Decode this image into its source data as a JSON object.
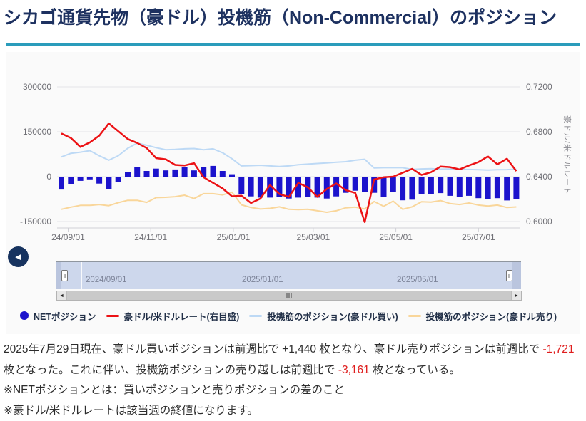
{
  "title": "シカゴ通貨先物（豪ドル）投機筋（Non-Commercial）のポジション",
  "colors": {
    "title": "#1d3160",
    "accent": "#2a9cbb",
    "card_bg": "#fafafa",
    "net_bar": "#1c13cc",
    "rate_line": "#ec1215",
    "long_line": "#bdd9f5",
    "short_line": "#f9d69a",
    "grid": "#e4e4e8",
    "axis_label": "#6f6f75",
    "axis_line": "#d0d0d6",
    "nav_band": "#cdd7ec",
    "nav_border": "#8f969f",
    "nav_label": "#7d8499",
    "scroll_track": "#c9c9c9",
    "scroll_btn": "#e6e6e6",
    "legend_text": "#223048",
    "text": "#2d2d2d",
    "negative": "#df1d1d"
  },
  "icons": {
    "back": "◀",
    "scroll_left": "◄",
    "scroll_right": "►",
    "handle_grip": "‖"
  },
  "chart_data": {
    "type": "combo",
    "x": [
      "2024/08/27",
      "2024/09/03",
      "2024/09/10",
      "2024/09/17",
      "2024/09/24",
      "2024/10/01",
      "2024/10/08",
      "2024/10/15",
      "2024/10/22",
      "2024/10/29",
      "2024/11/05",
      "2024/11/12",
      "2024/11/19",
      "2024/11/26",
      "2024/12/03",
      "2024/12/10",
      "2024/12/17",
      "2024/12/24",
      "2024/12/31",
      "2025/01/07",
      "2025/01/14",
      "2025/01/21",
      "2025/01/28",
      "2025/02/04",
      "2025/02/11",
      "2025/02/18",
      "2025/02/25",
      "2025/03/04",
      "2025/03/11",
      "2025/03/18",
      "2025/03/25",
      "2025/04/01",
      "2025/04/08",
      "2025/04/15",
      "2025/04/22",
      "2025/04/29",
      "2025/05/06",
      "2025/05/13",
      "2025/05/20",
      "2025/05/27",
      "2025/06/03",
      "2025/06/10",
      "2025/06/17",
      "2025/06/24",
      "2025/07/01",
      "2025/07/08",
      "2025/07/15",
      "2025/07/22",
      "2025/07/29"
    ],
    "x_ticks": [
      {
        "label": "24/09/01",
        "pos": 0.714
      },
      {
        "label": "24/11/01",
        "pos": 9.429
      },
      {
        "label": "25/01/01",
        "pos": 18.143
      },
      {
        "label": "25/03/01",
        "pos": 26.571
      },
      {
        "label": "25/05/01",
        "pos": 35.286
      },
      {
        "label": "25/07/01",
        "pos": 44.0
      }
    ],
    "left_axis": {
      "ticks": [
        {
          "label": "300000",
          "value": 300000
        },
        {
          "label": "150000",
          "value": 150000
        },
        {
          "label": "0",
          "value": 0
        },
        {
          "label": "-150000",
          "value": -150000
        }
      ]
    },
    "right_axis": {
      "title": "豪ドル/米ドルレート",
      "ticks": [
        {
          "label": "0.7200",
          "value": 0.72
        },
        {
          "label": "0.6800",
          "value": 0.68
        },
        {
          "label": "0.6400",
          "value": 0.64
        },
        {
          "label": "0.6000",
          "value": 0.6
        }
      ]
    },
    "series": [
      {
        "id": "net",
        "name": "NETポジション",
        "type": "bar",
        "axis": "left",
        "color": "#1c13cc",
        "values": [
          -43000,
          -24000,
          -14000,
          -9000,
          -23000,
          -42000,
          -17000,
          16000,
          33000,
          19000,
          27000,
          21000,
          24000,
          31000,
          21000,
          33000,
          36000,
          19000,
          8000,
          -58000,
          -66000,
          -70000,
          -70000,
          -67000,
          -73000,
          -70000,
          -67000,
          -70000,
          -73000,
          -66000,
          -54000,
          -47000,
          -50000,
          -54000,
          -69000,
          -52000,
          -79000,
          -77000,
          -58000,
          -58000,
          -55000,
          -64000,
          -69000,
          -64000,
          -72000,
          -76000,
          -72000,
          -79440,
          -76279
        ]
      },
      {
        "id": "rate",
        "name": "豪ドル/米ドルレート(右目盛)",
        "type": "line",
        "axis": "right",
        "color": "#ec1215",
        "values": [
          0.6785,
          0.6745,
          0.6665,
          0.6705,
          0.6765,
          0.6875,
          0.6805,
          0.6735,
          0.67,
          0.6655,
          0.6565,
          0.6555,
          0.6505,
          0.65,
          0.652,
          0.6395,
          0.6345,
          0.6295,
          0.6225,
          0.623,
          0.6165,
          0.6205,
          0.6325,
          0.6245,
          0.622,
          0.6345,
          0.6305,
          0.622,
          0.629,
          0.634,
          0.628,
          0.6255,
          0.5995,
          0.6375,
          0.6395,
          0.64,
          0.6435,
          0.647,
          0.6415,
          0.644,
          0.649,
          0.6485,
          0.6465,
          0.65,
          0.653,
          0.658,
          0.651,
          0.656,
          0.645
        ]
      },
      {
        "id": "long",
        "name": "投機筋のポジション(豪ドル買い)",
        "type": "line",
        "axis": "left",
        "color": "#bdd9f5",
        "values": [
          66000,
          78000,
          82000,
          87000,
          70000,
          55000,
          70000,
          95000,
          112000,
          105000,
          97000,
          90000,
          91000,
          93000,
          94000,
          90000,
          93000,
          80000,
          60000,
          36000,
          37000,
          38000,
          36000,
          34000,
          36000,
          40000,
          42000,
          44000,
          46000,
          48000,
          50000,
          55000,
          58000,
          29000,
          30000,
          30000,
          30000,
          24000,
          26000,
          27000,
          25000,
          26000,
          24000,
          24000,
          23000,
          22000,
          23000,
          23560,
          25000
        ]
      },
      {
        "id": "short",
        "name": "投機筋のポジション(豪ドル売り)",
        "type": "line",
        "axis": "left",
        "color": "#f9d69a",
        "values": [
          -109000,
          -102000,
          -96000,
          -96000,
          -93000,
          -97000,
          -87000,
          -79000,
          -79000,
          -86000,
          -70000,
          -69000,
          -67000,
          -62000,
          -73000,
          -57000,
          -57000,
          -61000,
          -52000,
          -94000,
          -103000,
          -108000,
          -106000,
          -101000,
          -109000,
          -110000,
          -109000,
          -114000,
          -119000,
          -114000,
          -104000,
          -102000,
          -108000,
          -83000,
          -99000,
          -82000,
          -109000,
          -101000,
          -84000,
          -85000,
          -80000,
          -90000,
          -93000,
          -88000,
          -95000,
          -98000,
          -95000,
          -103000,
          -101279
        ]
      }
    ],
    "grid": "horizontal-only",
    "legend_position": "bottom"
  },
  "navigator": {
    "labels": [
      "2024/09/01",
      "2025/01/01",
      "2025/05/01"
    ]
  },
  "legend": {
    "items": [
      {
        "label": "NETポジション",
        "color": "#1c13cc",
        "marker": "dot"
      },
      {
        "label": "豪ドル/米ドルレート(右目盛)",
        "color": "#ec1215",
        "marker": "line"
      },
      {
        "label": "投機筋のポジション(豪ドル買い)",
        "color": "#bdd9f5",
        "marker": "line"
      },
      {
        "label": "投機筋のポジション(豪ドル売り)",
        "color": "#f9d69a",
        "marker": "line"
      }
    ]
  },
  "report": {
    "seg1": "2025年7月29日現在、豪ドル買いポジションは前週比で ",
    "num1": "+1,440",
    "seg2": " 枚となり、豪ドル売りポジションは前週比で ",
    "num2": "-1,721",
    "seg3": " 枚となった。これに伴い、投機筋ポジションの売り越しは前週比で ",
    "num3": "-3,161",
    "seg4": " 枚となっている。"
  },
  "notes": [
    "※NETポジションとは：買いポジションと売りポジションの差のこと",
    "※豪ドル/米ドルレートは該当週の終値になります。"
  ]
}
